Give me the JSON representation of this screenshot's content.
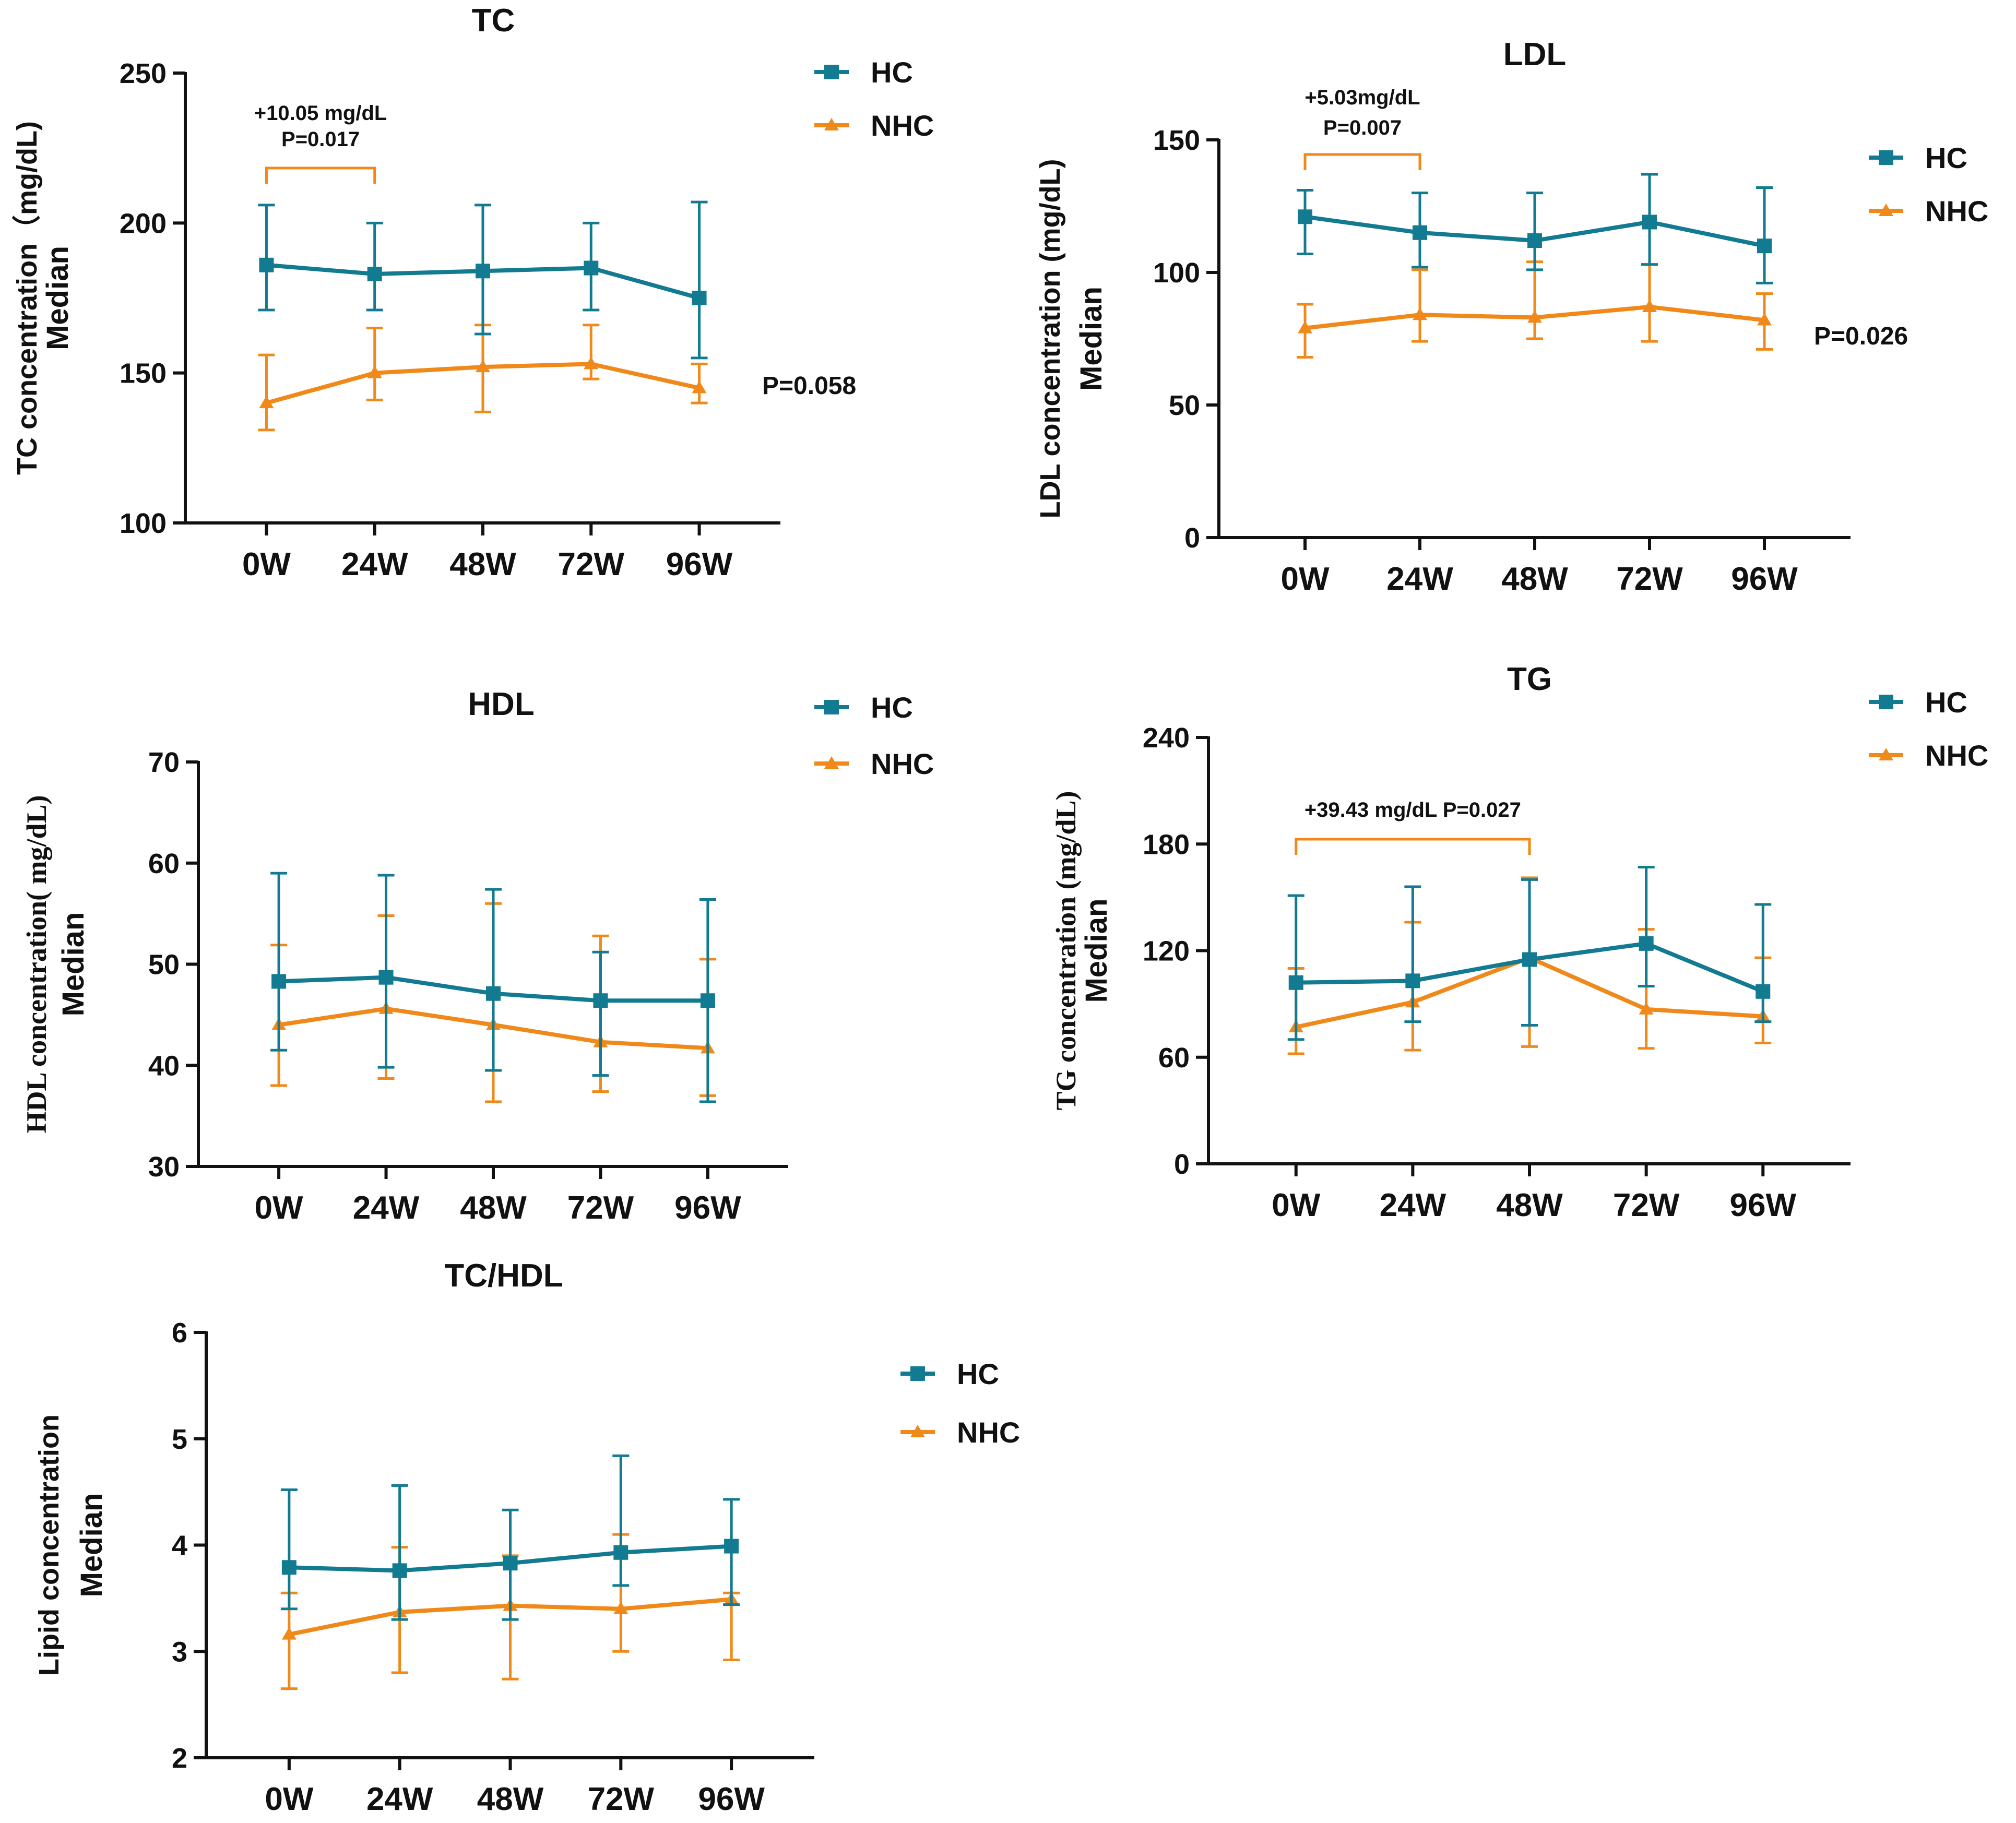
{
  "colors": {
    "hc": "#127a91",
    "nhc": "#f0891a",
    "axis": "#111111",
    "text": "#111111"
  },
  "chart_data": [
    {
      "id": "tc",
      "type": "line",
      "title": "TC",
      "ylabel": "TC concentration（mg/dL)",
      "ylabel2": "Median",
      "categories": [
        "0W",
        "24W",
        "48W",
        "72W",
        "96W"
      ],
      "ylim": [
        100,
        250
      ],
      "yticks": [
        100,
        150,
        200,
        250
      ],
      "series": [
        {
          "name": "HC",
          "marker": "square",
          "values": [
            186,
            183,
            184,
            185,
            175
          ],
          "err_low": [
            171,
            171,
            163,
            171,
            155
          ],
          "err_high": [
            206,
            200,
            206,
            200,
            207
          ]
        },
        {
          "name": "NHC",
          "marker": "triangle",
          "values": [
            140,
            150,
            152,
            153,
            145
          ],
          "err_low": [
            131,
            141,
            137,
            148,
            140
          ],
          "err_high": [
            156,
            165,
            166,
            166,
            153
          ]
        }
      ],
      "legend": [
        "HC",
        "NHC"
      ],
      "bracket": {
        "from": 0,
        "to": 1,
        "line1": "+10.05 mg/dL",
        "line2": "P=0.017"
      },
      "pvalue": "P=0.058"
    },
    {
      "id": "ldl",
      "type": "line",
      "title": "LDL",
      "ylabel": "LDL concentration (mg/dL)",
      "ylabel2": "Median",
      "categories": [
        "0W",
        "24W",
        "48W",
        "72W",
        "96W"
      ],
      "ylim": [
        0,
        150
      ],
      "yticks": [
        0,
        50,
        100,
        150
      ],
      "series": [
        {
          "name": "HC",
          "marker": "square",
          "values": [
            121,
            115,
            112,
            119,
            110
          ],
          "err_low": [
            107,
            102,
            101,
            103,
            96
          ],
          "err_high": [
            131,
            130,
            130,
            137,
            132
          ]
        },
        {
          "name": "NHC",
          "marker": "triangle",
          "values": [
            79,
            84,
            83,
            87,
            82
          ],
          "err_low": [
            68,
            74,
            75,
            74,
            71
          ],
          "err_high": [
            88,
            101,
            104,
            103,
            92
          ]
        }
      ],
      "legend": [
        "HC",
        "NHC"
      ],
      "bracket": {
        "from": 0,
        "to": 1,
        "line1": "+5.03mg/dL",
        "line2": "P=0.007"
      },
      "pvalue": "P=0.026"
    },
    {
      "id": "hdl",
      "type": "line",
      "title": "HDL",
      "ylabel": "HDL concentration( mg/dL)",
      "ylabel2": "Median",
      "categories": [
        "0W",
        "24W",
        "48W",
        "72W",
        "96W"
      ],
      "ylim": [
        30,
        70
      ],
      "yticks": [
        30,
        40,
        50,
        60,
        70
      ],
      "series": [
        {
          "name": "HC",
          "marker": "square",
          "values": [
            48.3,
            48.7,
            47.1,
            46.4,
            46.4
          ],
          "err_low": [
            41.5,
            39.8,
            39.5,
            39.0,
            36.4
          ],
          "err_high": [
            59.0,
            58.8,
            57.4,
            51.2,
            56.4
          ]
        },
        {
          "name": "NHC",
          "marker": "triangle",
          "values": [
            44.0,
            45.6,
            44.0,
            42.3,
            41.7
          ],
          "err_low": [
            38.0,
            38.7,
            36.4,
            37.4,
            37.0
          ],
          "err_high": [
            51.9,
            54.8,
            56.0,
            52.8,
            50.5
          ]
        }
      ],
      "legend": [
        "HC",
        "NHC"
      ]
    },
    {
      "id": "tg",
      "type": "line",
      "title": "TG",
      "ylabel": "TG concentration (mg/dL)",
      "ylabel2": "Median",
      "categories": [
        "0W",
        "24W",
        "48W",
        "72W",
        "96W"
      ],
      "ylim": [
        0,
        240
      ],
      "yticks": [
        0,
        60,
        120,
        180,
        240
      ],
      "series": [
        {
          "name": "HC",
          "marker": "square",
          "values": [
            102,
            103,
            115,
            124,
            97
          ],
          "err_low": [
            70,
            80,
            78,
            100,
            80
          ],
          "err_high": [
            151,
            156,
            160,
            167,
            146
          ]
        },
        {
          "name": "NHC",
          "marker": "triangle",
          "values": [
            77,
            91,
            116,
            87,
            83
          ],
          "err_low": [
            62,
            64,
            66,
            65,
            68
          ],
          "err_high": [
            110,
            136,
            161,
            132,
            116
          ]
        }
      ],
      "legend": [
        "HC",
        "NHC"
      ],
      "bracket": {
        "from": 0,
        "to": 2,
        "line1": "+39.43 mg/dL P=0.027",
        "line2": ""
      }
    },
    {
      "id": "tchdl",
      "type": "line",
      "title": "TC/HDL",
      "ylabel": "Lipid concentration",
      "ylabel2": "Median",
      "categories": [
        "0W",
        "24W",
        "48W",
        "72W",
        "96W"
      ],
      "ylim": [
        2,
        6
      ],
      "yticks": [
        2,
        3,
        4,
        5,
        6
      ],
      "series": [
        {
          "name": "HC",
          "marker": "square",
          "values": [
            3.79,
            3.76,
            3.83,
            3.93,
            3.99
          ],
          "err_low": [
            3.4,
            3.3,
            3.3,
            3.62,
            3.44
          ],
          "err_high": [
            4.52,
            4.56,
            4.33,
            4.84,
            4.43
          ]
        },
        {
          "name": "NHC",
          "marker": "triangle",
          "values": [
            3.16,
            3.37,
            3.43,
            3.4,
            3.49
          ],
          "err_low": [
            2.65,
            2.8,
            2.74,
            3.0,
            2.92
          ],
          "err_high": [
            3.55,
            3.98,
            3.9,
            4.1,
            3.55
          ]
        }
      ],
      "legend": [
        "HC",
        "NHC"
      ]
    }
  ]
}
